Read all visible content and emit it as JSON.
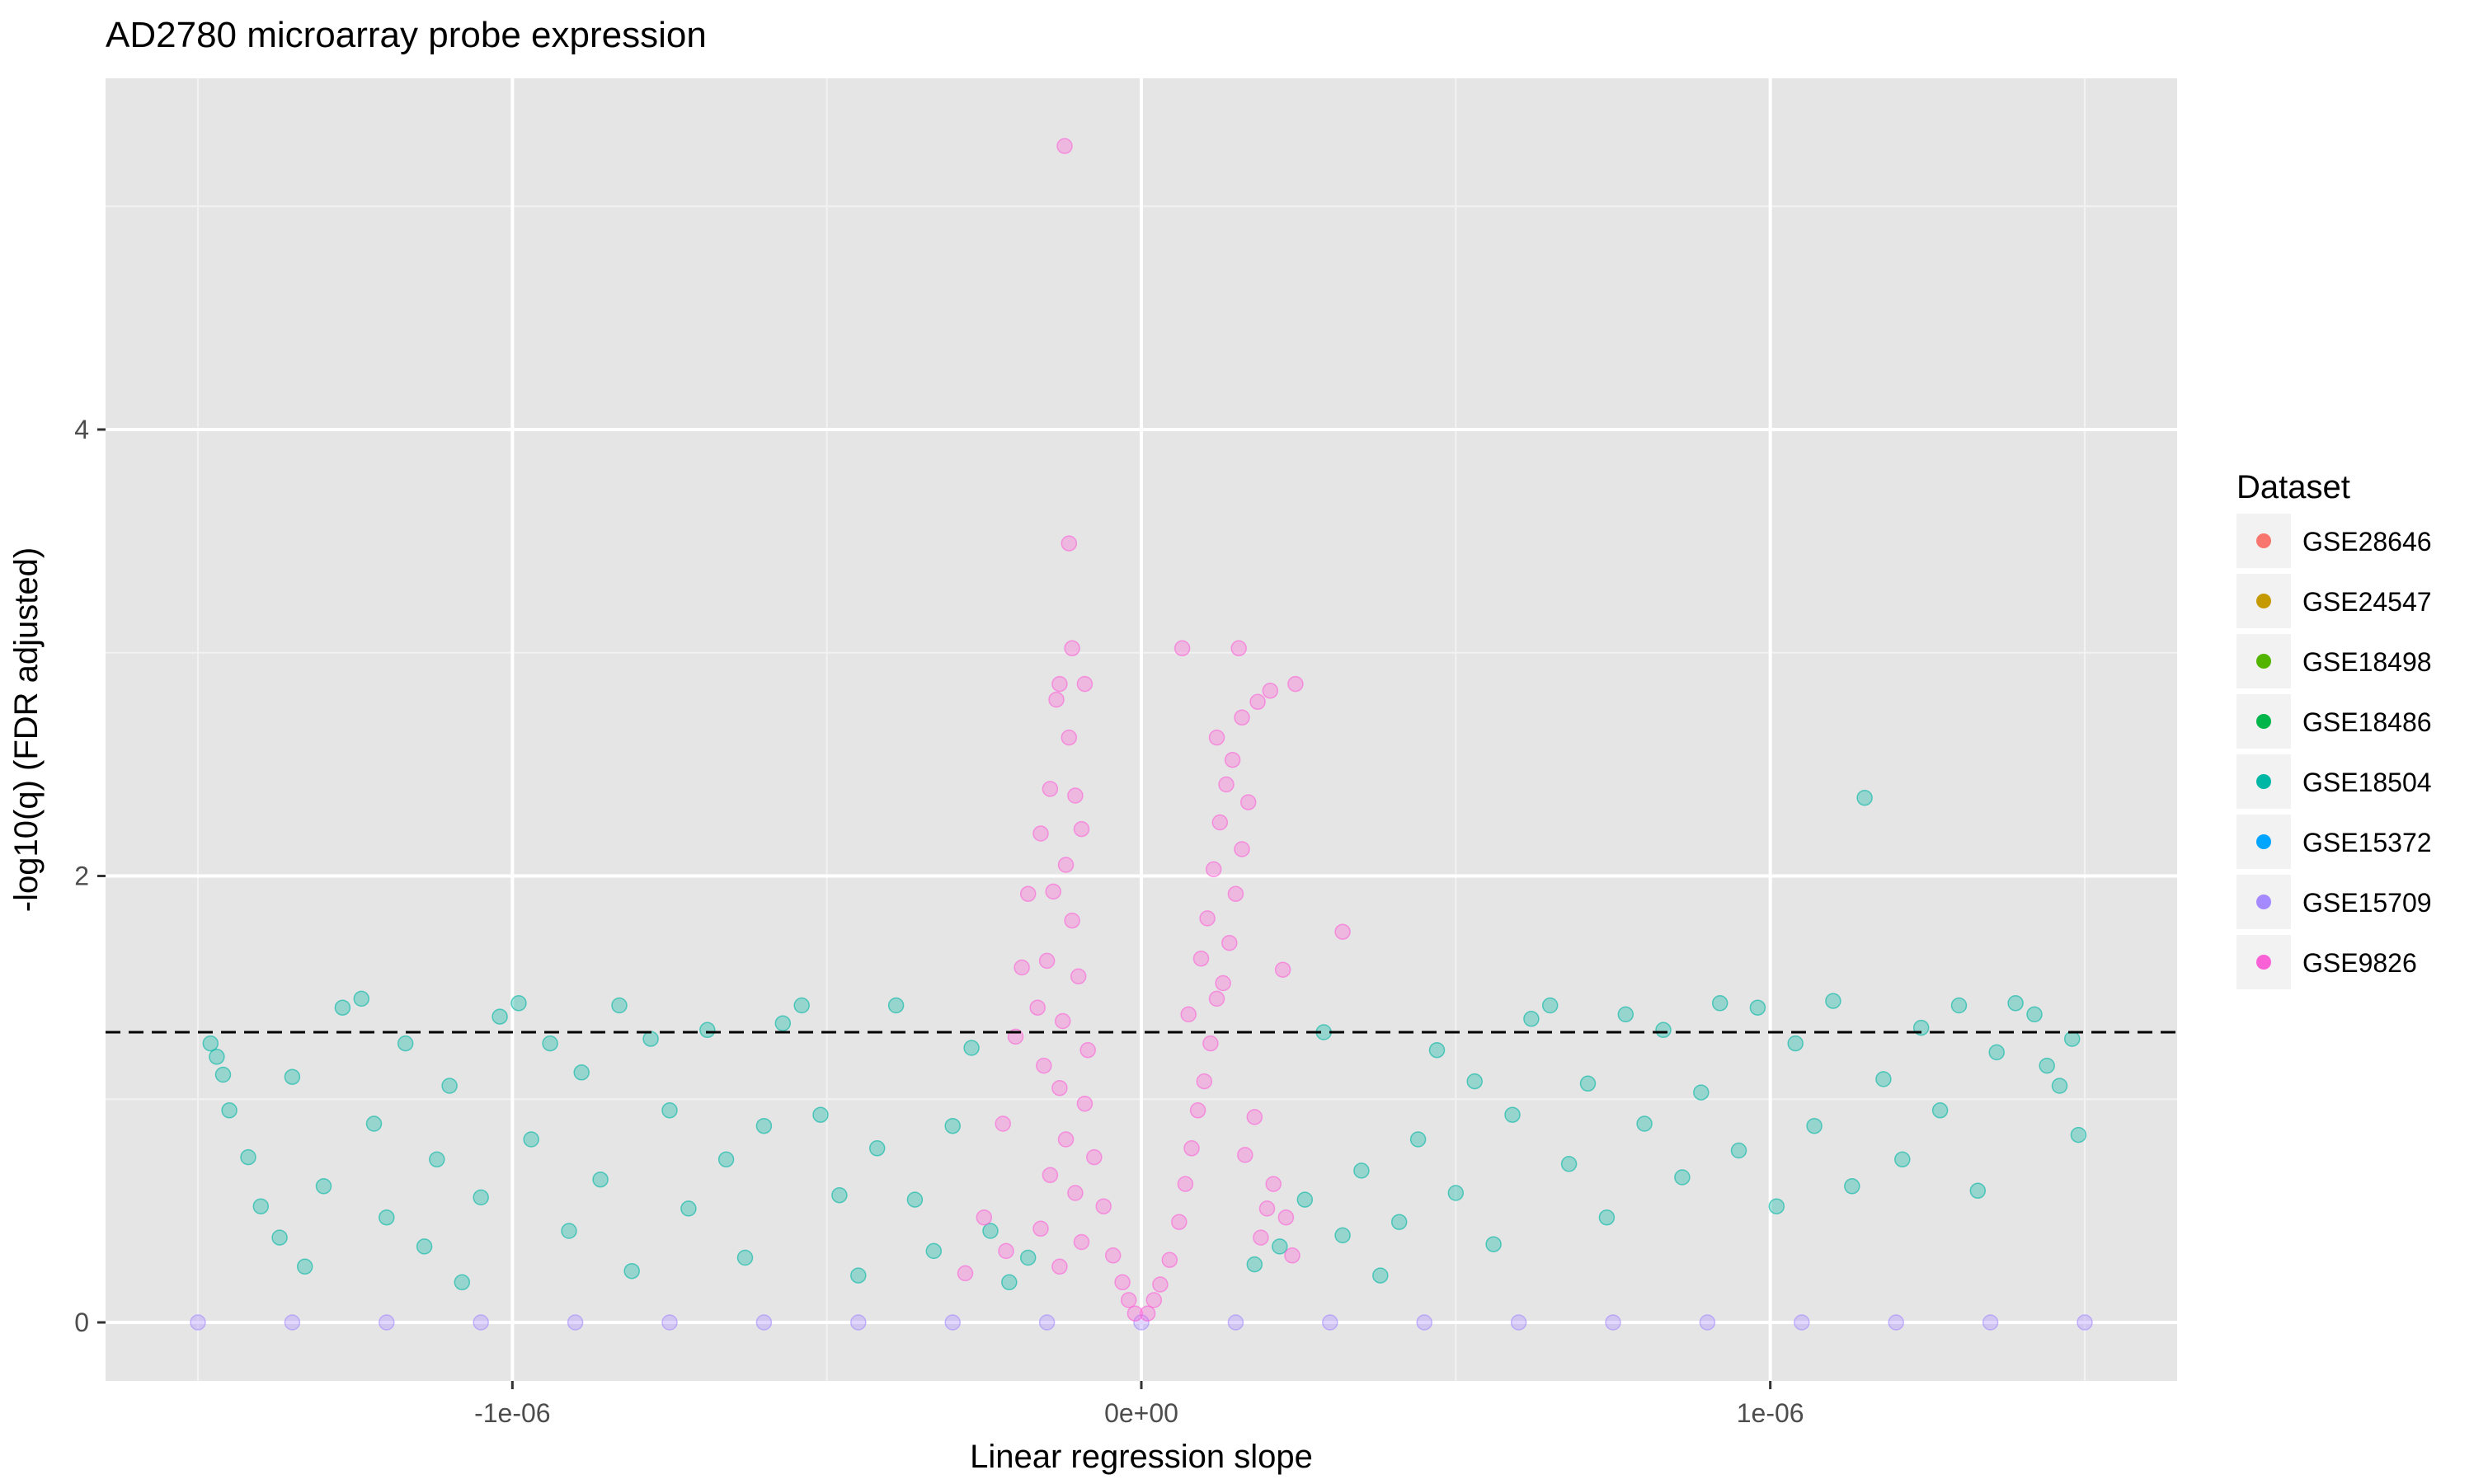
{
  "chart_data": {
    "type": "scatter",
    "title": "AD2780 microarray probe expression",
    "xlabel": "Linear regression slope",
    "ylabel": "-log10(q) (FDR adjusted)",
    "xlim": [
      -1.5e-06,
      1.5e-06
    ],
    "ylim": [
      0,
      5.3
    ],
    "x_ticks": [
      {
        "value": -1e-06,
        "label": "-1e-06"
      },
      {
        "value": 0,
        "label": "0e+00"
      },
      {
        "value": 1e-06,
        "label": "1e-06"
      }
    ],
    "y_ticks": [
      {
        "value": 0,
        "label": "0"
      },
      {
        "value": 2,
        "label": "2"
      },
      {
        "value": 4,
        "label": "4"
      }
    ],
    "reference_line": {
      "y": 1.3,
      "style": "dashed"
    },
    "grid": true,
    "background": "#e5e5e5",
    "legend": {
      "title": "Dataset",
      "position": "right",
      "entries": [
        {
          "name": "GSE28646",
          "color": "#f8766d"
        },
        {
          "name": "GSE24547",
          "color": "#c49a00"
        },
        {
          "name": "GSE18498",
          "color": "#53b400"
        },
        {
          "name": "GSE18486",
          "color": "#00b64a"
        },
        {
          "name": "GSE18504",
          "color": "#00b6a4"
        },
        {
          "name": "GSE15372",
          "color": "#00a5ff"
        },
        {
          "name": "GSE15709",
          "color": "#a58aff"
        },
        {
          "name": "GSE9826",
          "color": "#fb61d7"
        }
      ]
    },
    "series": [
      {
        "name": "GSE15709",
        "color": "#a58aff",
        "points": [
          [
            -1.5e-06,
            0
          ],
          [
            -1.35e-06,
            0
          ],
          [
            -1.2e-06,
            0
          ],
          [
            -1.05e-06,
            0
          ],
          [
            -9e-07,
            0
          ],
          [
            -7.5e-07,
            0
          ],
          [
            -6e-07,
            0
          ],
          [
            -4.5e-07,
            0
          ],
          [
            -3e-07,
            0
          ],
          [
            -1.5e-07,
            0
          ],
          [
            0,
            0
          ],
          [
            1.5e-07,
            0
          ],
          [
            3e-07,
            0
          ],
          [
            4.5e-07,
            0
          ],
          [
            6e-07,
            0
          ],
          [
            7.5e-07,
            0
          ],
          [
            9e-07,
            0
          ],
          [
            1.05e-06,
            0
          ],
          [
            1.2e-06,
            0
          ],
          [
            1.35e-06,
            0
          ],
          [
            1.5e-06,
            0
          ]
        ]
      },
      {
        "name": "GSE18504",
        "color": "#00b6a4",
        "points": [
          [
            -1.48e-06,
            1.25
          ],
          [
            -1.47e-06,
            1.19
          ],
          [
            -1.46e-06,
            1.11
          ],
          [
            -1.45e-06,
            0.95
          ],
          [
            -1.42e-06,
            0.74
          ],
          [
            -1.4e-06,
            0.52
          ],
          [
            -1.37e-06,
            0.38
          ],
          [
            -1.35e-06,
            1.1
          ],
          [
            -1.33e-06,
            0.25
          ],
          [
            -1.3e-06,
            0.61
          ],
          [
            -1.27e-06,
            1.41
          ],
          [
            -1.24e-06,
            1.45
          ],
          [
            -1.22e-06,
            0.89
          ],
          [
            -1.2e-06,
            0.47
          ],
          [
            -1.17e-06,
            1.25
          ],
          [
            -1.14e-06,
            0.34
          ],
          [
            -1.12e-06,
            0.73
          ],
          [
            -1.1e-06,
            1.06
          ],
          [
            -1.08e-06,
            0.18
          ],
          [
            -1.05e-06,
            0.56
          ],
          [
            -1.02e-06,
            1.37
          ],
          [
            -9.9e-07,
            1.43
          ],
          [
            -9.7e-07,
            0.82
          ],
          [
            -9.4e-07,
            1.25
          ],
          [
            -9.1e-07,
            0.41
          ],
          [
            -8.9e-07,
            1.12
          ],
          [
            -8.6e-07,
            0.64
          ],
          [
            -8.3e-07,
            1.42
          ],
          [
            -8.1e-07,
            0.23
          ],
          [
            -7.8e-07,
            1.27
          ],
          [
            -7.5e-07,
            0.95
          ],
          [
            -7.2e-07,
            0.51
          ],
          [
            -6.9e-07,
            1.31
          ],
          [
            -6.6e-07,
            0.73
          ],
          [
            -6.3e-07,
            0.29
          ],
          [
            -6e-07,
            0.88
          ],
          [
            -5.7e-07,
            1.34
          ],
          [
            -5.4e-07,
            1.42
          ],
          [
            -5.1e-07,
            0.93
          ],
          [
            -4.8e-07,
            0.57
          ],
          [
            -4.5e-07,
            0.21
          ],
          [
            -4.2e-07,
            0.78
          ],
          [
            -3.9e-07,
            1.42
          ],
          [
            -3.6e-07,
            0.55
          ],
          [
            -3.3e-07,
            0.32
          ],
          [
            -3e-07,
            0.88
          ],
          [
            -2.7e-07,
            1.23
          ],
          [
            -2.4e-07,
            0.41
          ],
          [
            -2.1e-07,
            0.18
          ],
          [
            -1.8e-07,
            0.29
          ],
          [
            1.8e-07,
            0.26
          ],
          [
            2.2e-07,
            0.34
          ],
          [
            2.6e-07,
            0.55
          ],
          [
            2.9e-07,
            1.3
          ],
          [
            3.2e-07,
            0.39
          ],
          [
            3.5e-07,
            0.68
          ],
          [
            3.8e-07,
            0.21
          ],
          [
            4.1e-07,
            0.45
          ],
          [
            4.4e-07,
            0.82
          ],
          [
            4.7e-07,
            1.22
          ],
          [
            5e-07,
            0.58
          ],
          [
            5.3e-07,
            1.08
          ],
          [
            5.6e-07,
            0.35
          ],
          [
            5.9e-07,
            0.93
          ],
          [
            6.2e-07,
            1.36
          ],
          [
            6.5e-07,
            1.42
          ],
          [
            6.8e-07,
            0.71
          ],
          [
            7.1e-07,
            1.07
          ],
          [
            7.4e-07,
            0.47
          ],
          [
            7.7e-07,
            1.38
          ],
          [
            8e-07,
            0.89
          ],
          [
            8.3e-07,
            1.31
          ],
          [
            8.6e-07,
            0.65
          ],
          [
            8.9e-07,
            1.03
          ],
          [
            9.2e-07,
            1.43
          ],
          [
            9.5e-07,
            0.77
          ],
          [
            9.8e-07,
            1.41
          ],
          [
            1.01e-06,
            0.52
          ],
          [
            1.04e-06,
            1.25
          ],
          [
            1.07e-06,
            0.88
          ],
          [
            1.1e-06,
            1.44
          ],
          [
            1.13e-06,
            0.61
          ],
          [
            1.15e-06,
            2.35
          ],
          [
            1.18e-06,
            1.09
          ],
          [
            1.21e-06,
            0.73
          ],
          [
            1.24e-06,
            1.32
          ],
          [
            1.27e-06,
            0.95
          ],
          [
            1.3e-06,
            1.42
          ],
          [
            1.33e-06,
            0.59
          ],
          [
            1.36e-06,
            1.21
          ],
          [
            1.39e-06,
            1.43
          ],
          [
            1.42e-06,
            1.38
          ],
          [
            1.44e-06,
            1.15
          ],
          [
            1.46e-06,
            1.06
          ],
          [
            1.48e-06,
            1.27
          ],
          [
            1.49e-06,
            0.84
          ]
        ]
      },
      {
        "name": "GSE9826",
        "color": "#fb61d7",
        "points": [
          [
            -1.22e-07,
            5.27
          ],
          [
            -1.15e-07,
            3.49
          ],
          [
            -1.1e-07,
            3.02
          ],
          [
            -1.3e-07,
            2.86
          ],
          [
            -1.35e-07,
            2.79
          ],
          [
            -9e-08,
            2.86
          ],
          [
            -1.15e-07,
            2.62
          ],
          [
            -1.45e-07,
            2.39
          ],
          [
            -1.05e-07,
            2.36
          ],
          [
            -9.5e-08,
            2.21
          ],
          [
            -1.6e-07,
            2.19
          ],
          [
            -1.2e-07,
            2.05
          ],
          [
            -1.4e-07,
            1.93
          ],
          [
            -1.8e-07,
            1.92
          ],
          [
            -1.1e-07,
            1.8
          ],
          [
            -1.9e-07,
            1.59
          ],
          [
            -1.5e-07,
            1.62
          ],
          [
            -1e-07,
            1.55
          ],
          [
            -1.65e-07,
            1.41
          ],
          [
            -1.25e-07,
            1.35
          ],
          [
            -2e-07,
            1.28
          ],
          [
            -8.5e-08,
            1.22
          ],
          [
            -1.55e-07,
            1.15
          ],
          [
            -1.3e-07,
            1.05
          ],
          [
            -9e-08,
            0.98
          ],
          [
            -2.2e-07,
            0.89
          ],
          [
            -1.2e-07,
            0.82
          ],
          [
            -7.5e-08,
            0.74
          ],
          [
            -1.45e-07,
            0.66
          ],
          [
            -1.05e-07,
            0.58
          ],
          [
            -2.5e-07,
            0.47
          ],
          [
            -6e-08,
            0.52
          ],
          [
            -1.6e-07,
            0.42
          ],
          [
            -9.5e-08,
            0.36
          ],
          [
            -4.5e-08,
            0.3
          ],
          [
            -2.8e-07,
            0.22
          ],
          [
            -1.3e-07,
            0.25
          ],
          [
            -3e-08,
            0.18
          ],
          [
            -2e-08,
            0.1
          ],
          [
            -1e-08,
            0.04
          ],
          [
            1e-08,
            0.04
          ],
          [
            2e-08,
            0.1
          ],
          [
            3e-08,
            0.17
          ],
          [
            4.5e-08,
            0.28
          ],
          [
            6e-08,
            0.45
          ],
          [
            7e-08,
            0.62
          ],
          [
            8e-08,
            0.78
          ],
          [
            9e-08,
            0.95
          ],
          [
            1e-07,
            1.08
          ],
          [
            1.1e-07,
            1.25
          ],
          [
            7.5e-08,
            1.38
          ],
          [
            1.2e-07,
            1.45
          ],
          [
            1.3e-07,
            1.52
          ],
          [
            9.5e-08,
            1.63
          ],
          [
            1.4e-07,
            1.7
          ],
          [
            1.05e-07,
            1.81
          ],
          [
            1.5e-07,
            1.92
          ],
          [
            1.15e-07,
            2.03
          ],
          [
            1.6e-07,
            2.12
          ],
          [
            1.25e-07,
            2.24
          ],
          [
            1.7e-07,
            2.33
          ],
          [
            1.35e-07,
            2.41
          ],
          [
            1.45e-07,
            2.52
          ],
          [
            1.2e-07,
            2.62
          ],
          [
            1.6e-07,
            2.71
          ],
          [
            1.85e-07,
            2.78
          ],
          [
            2.05e-07,
            2.83
          ],
          [
            2.45e-07,
            2.86
          ],
          [
            1.55e-07,
            3.02
          ],
          [
            6.5e-08,
            3.02
          ],
          [
            1.8e-07,
            0.92
          ],
          [
            2e-07,
            0.51
          ],
          [
            1.9e-07,
            0.38
          ],
          [
            2.25e-07,
            1.58
          ],
          [
            3.2e-07,
            1.75
          ],
          [
            2.1e-07,
            0.62
          ],
          [
            1.65e-07,
            0.75
          ],
          [
            2.3e-07,
            0.47
          ],
          [
            -2.15e-07,
            0.32
          ],
          [
            2.4e-07,
            0.3
          ]
        ]
      }
    ]
  }
}
